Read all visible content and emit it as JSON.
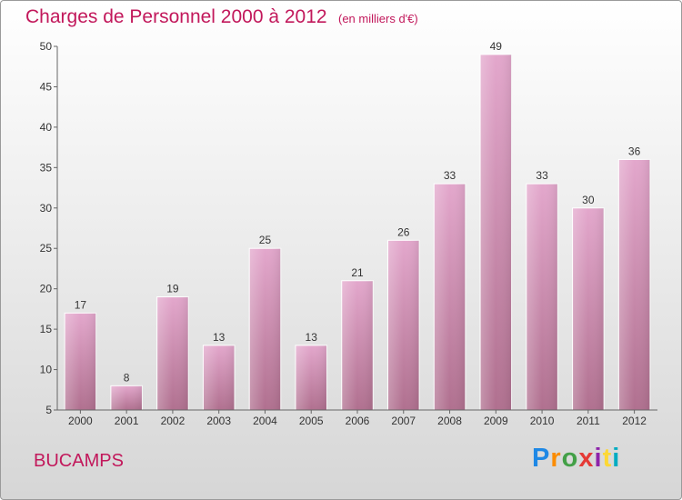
{
  "title": "Charges de Personnel 2000 à 2012",
  "subtitle": "(en milliers d'€)",
  "commune": "BUCAMPS",
  "logo": {
    "text": "Proxiti",
    "letter_colors": [
      "#1e88e5",
      "#fb8c00",
      "#43a047",
      "#e53935",
      "#8e24aa",
      "#fdd835",
      "#00acc1"
    ]
  },
  "colors": {
    "title": "#c2185b",
    "bar_top": "#e3a7cc",
    "bar_bottom": "#b0708f"
  },
  "chart_data": {
    "type": "bar",
    "title": "Charges de Personnel 2000 à 2012",
    "categories": [
      "2000",
      "2001",
      "2002",
      "2003",
      "2004",
      "2005",
      "2006",
      "2007",
      "2008",
      "2009",
      "2010",
      "2011",
      "2012"
    ],
    "values": [
      17,
      8,
      19,
      13,
      25,
      13,
      21,
      26,
      33,
      49,
      33,
      30,
      36
    ],
    "ylim": [
      5,
      50
    ],
    "yticks": [
      5,
      10,
      15,
      20,
      25,
      30,
      35,
      40,
      45,
      50
    ],
    "grid": false,
    "data_labels": true
  }
}
